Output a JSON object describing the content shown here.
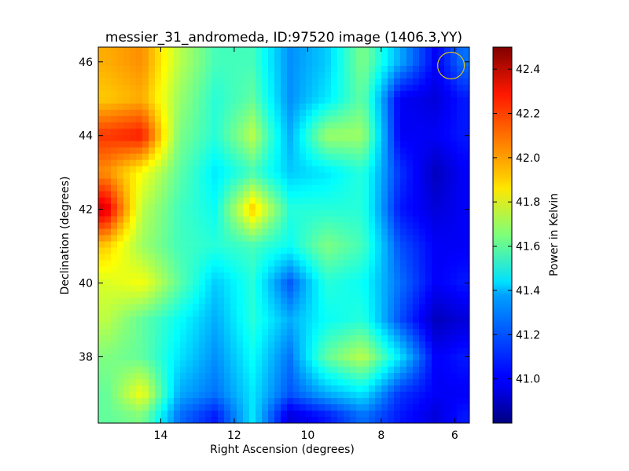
{
  "chart_data": {
    "type": "heatmap",
    "title": "messier_31_andromeda, ID:97520 image (1406.3,YY)",
    "xlabel": "Right Ascension (degrees)",
    "ylabel": "Declination (degrees)",
    "xlim": [
      15.7,
      5.6
    ],
    "ylim": [
      36.2,
      46.4
    ],
    "xticks": [
      14,
      12,
      10,
      8,
      6
    ],
    "yticks": [
      38,
      40,
      42,
      44,
      46
    ],
    "colorbar": {
      "label": "Power in Kelvin",
      "range": [
        40.8,
        42.5
      ],
      "ticks": [
        "41.0",
        "41.2",
        "41.4",
        "41.6",
        "41.8",
        "42.0",
        "42.2",
        "42.4"
      ],
      "colormap": "jet"
    },
    "grid": false,
    "marker": {
      "type": "circle",
      "ra": 6.1,
      "dec": 45.9,
      "color": "#d4c21a"
    },
    "grid_ra": [
      15.5,
      14.5,
      13.5,
      12.5,
      11.5,
      10.5,
      9.5,
      8.5,
      7.5,
      6.5,
      5.8
    ],
    "grid_dec": [
      46.0,
      45.0,
      44.0,
      43.0,
      42.0,
      41.0,
      40.0,
      39.0,
      38.0,
      37.0,
      36.4
    ],
    "values": [
      [
        42.0,
        42.05,
        41.75,
        41.55,
        41.55,
        41.25,
        41.35,
        41.65,
        41.3,
        41.0,
        41.2
      ],
      [
        41.95,
        42.0,
        41.7,
        41.5,
        41.6,
        41.25,
        41.4,
        41.6,
        41.0,
        40.95,
        41.05
      ],
      [
        42.2,
        42.25,
        41.65,
        41.5,
        41.75,
        41.3,
        41.7,
        41.7,
        41.0,
        41.0,
        41.05
      ],
      [
        42.05,
        41.85,
        41.6,
        41.4,
        41.55,
        41.35,
        41.4,
        41.5,
        41.1,
        40.9,
        41.0
      ],
      [
        42.35,
        41.75,
        41.55,
        41.45,
        41.95,
        41.5,
        41.5,
        41.5,
        41.05,
        40.95,
        41.0
      ],
      [
        41.95,
        41.7,
        41.55,
        41.5,
        41.55,
        41.45,
        41.65,
        41.55,
        41.15,
        41.0,
        41.0
      ],
      [
        41.8,
        41.85,
        41.6,
        41.35,
        41.5,
        41.15,
        41.5,
        41.45,
        41.2,
        41.0,
        41.05
      ],
      [
        41.75,
        41.6,
        41.45,
        41.3,
        41.5,
        41.3,
        41.45,
        41.5,
        41.15,
        40.9,
        40.95
      ],
      [
        41.65,
        41.6,
        41.4,
        41.25,
        41.45,
        41.2,
        41.6,
        41.75,
        41.4,
        41.0,
        41.05
      ],
      [
        41.6,
        41.85,
        41.3,
        41.2,
        41.4,
        41.15,
        41.3,
        41.4,
        41.1,
        41.0,
        41.0
      ],
      [
        41.6,
        41.65,
        41.2,
        41.05,
        41.4,
        40.95,
        41.05,
        41.2,
        41.05,
        40.95,
        41.05
      ]
    ]
  }
}
